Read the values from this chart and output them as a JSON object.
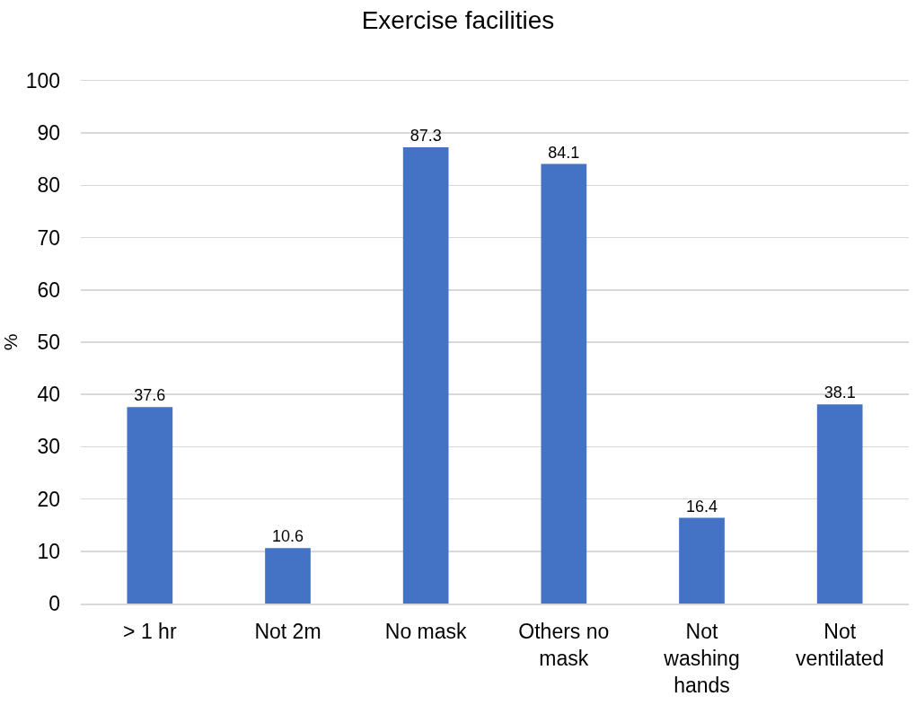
{
  "chart_data": {
    "type": "bar",
    "title": "Exercise facilities",
    "ylabel": "%",
    "categories": [
      "> 1 hr",
      "Not 2m",
      "No mask",
      "Others no mask",
      "Not washing hands",
      "Not ventilated"
    ],
    "values": [
      37.6,
      10.6,
      87.3,
      84.1,
      16.4,
      38.1
    ],
    "color": "#4472c4",
    "ylim": [
      0,
      100
    ],
    "yticks": [
      0,
      10,
      20,
      30,
      40,
      50,
      60,
      70,
      80,
      90,
      100
    ],
    "grid": "y",
    "data_labels": true
  }
}
